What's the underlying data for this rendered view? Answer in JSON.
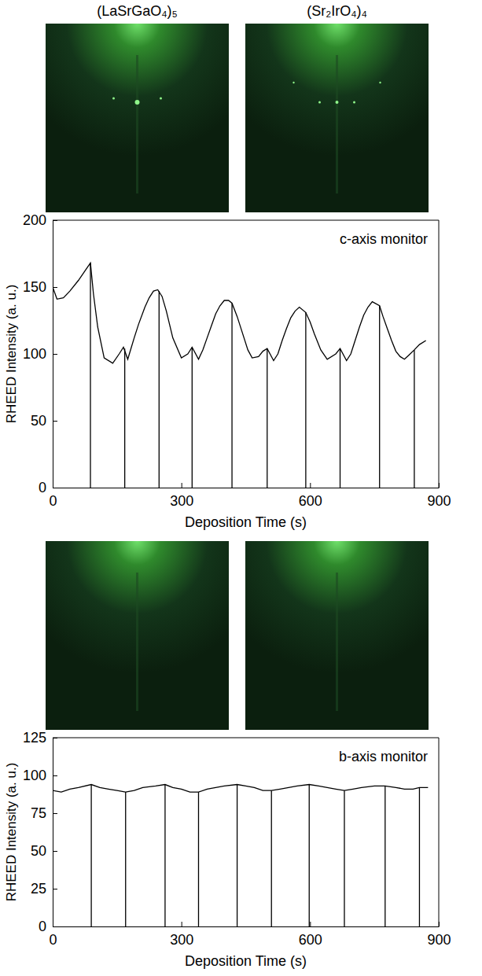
{
  "image_titles": [
    "(LaSrGaO₄)₅",
    "(Sr₂IrO₄)₄"
  ],
  "chart_data": [
    {
      "type": "line",
      "annotation": "c-axis monitor",
      "x_label": "Deposition Time (s)",
      "y_label": "RHEED Intensity (a. u.)",
      "xlim": [
        0,
        900
      ],
      "xticks": [
        0,
        300,
        600,
        900
      ],
      "ylim": [
        0,
        200
      ],
      "yticks": [
        0,
        50,
        100,
        150,
        200
      ],
      "color": "#000000",
      "x": [
        0,
        10,
        25,
        40,
        60,
        75,
        88,
        95,
        105,
        120,
        140,
        155,
        165,
        175,
        190,
        200,
        215,
        225,
        235,
        245,
        255,
        265,
        280,
        300,
        315,
        325,
        340,
        350,
        360,
        370,
        380,
        390,
        400,
        410,
        418,
        430,
        440,
        455,
        465,
        480,
        490,
        500,
        515,
        525,
        535,
        545,
        555,
        565,
        575,
        590,
        600,
        610,
        625,
        640,
        660,
        670,
        685,
        695,
        705,
        715,
        725,
        735,
        745,
        762,
        770,
        780,
        790,
        800,
        810,
        820,
        830,
        843,
        855,
        870
      ],
      "values": [
        150,
        141,
        142,
        147,
        155,
        162,
        168,
        145,
        120,
        97,
        93,
        100,
        105,
        96,
        112,
        122,
        135,
        142,
        147,
        148,
        143,
        132,
        112,
        97,
        100,
        105,
        96,
        103,
        112,
        121,
        130,
        136,
        140,
        140,
        138,
        128,
        118,
        103,
        97,
        98,
        102,
        104,
        95,
        100,
        110,
        119,
        127,
        132,
        135,
        131,
        124,
        115,
        103,
        96,
        100,
        104,
        95,
        100,
        110,
        120,
        129,
        135,
        139,
        136,
        128,
        119,
        110,
        102,
        98,
        96,
        99,
        103,
        107,
        110
      ],
      "stems": {
        "x": [
          88,
          168,
          248,
          325,
          418,
          500,
          590,
          670,
          762,
          843
        ],
        "values": [
          168,
          104,
          147,
          105,
          138,
          104,
          131,
          104,
          136,
          103
        ]
      }
    },
    {
      "type": "line",
      "annotation": "b-axis monitor",
      "x_label": "Deposition Time (s)",
      "y_label": "RHEED Intensity (a. u.)",
      "xlim": [
        0,
        900
      ],
      "xticks": [
        0,
        300,
        600,
        900
      ],
      "ylim": [
        0,
        125
      ],
      "yticks": [
        0,
        25,
        50,
        75,
        100,
        125
      ],
      "color": "#000000",
      "x": [
        0,
        20,
        40,
        60,
        90,
        110,
        130,
        150,
        170,
        190,
        210,
        240,
        262,
        280,
        300,
        320,
        340,
        360,
        380,
        400,
        430,
        450,
        470,
        490,
        510,
        530,
        550,
        570,
        598,
        620,
        640,
        660,
        680,
        700,
        720,
        750,
        775,
        800,
        820,
        840,
        855,
        875
      ],
      "values": [
        90,
        89,
        91,
        92,
        94,
        92,
        91,
        90,
        89,
        90,
        92,
        93,
        94,
        92,
        91,
        89,
        89,
        91,
        92,
        93,
        94,
        93,
        92,
        90,
        90,
        91,
        92,
        93,
        94,
        93,
        92,
        91,
        90,
        91,
        92,
        93,
        93,
        92,
        91,
        91,
        92,
        92
      ],
      "stems": {
        "x": [
          90,
          170,
          262,
          340,
          430,
          510,
          598,
          680,
          775,
          855
        ],
        "values": [
          94,
          89,
          94,
          89,
          94,
          90,
          94,
          90,
          93,
          92
        ]
      }
    }
  ]
}
